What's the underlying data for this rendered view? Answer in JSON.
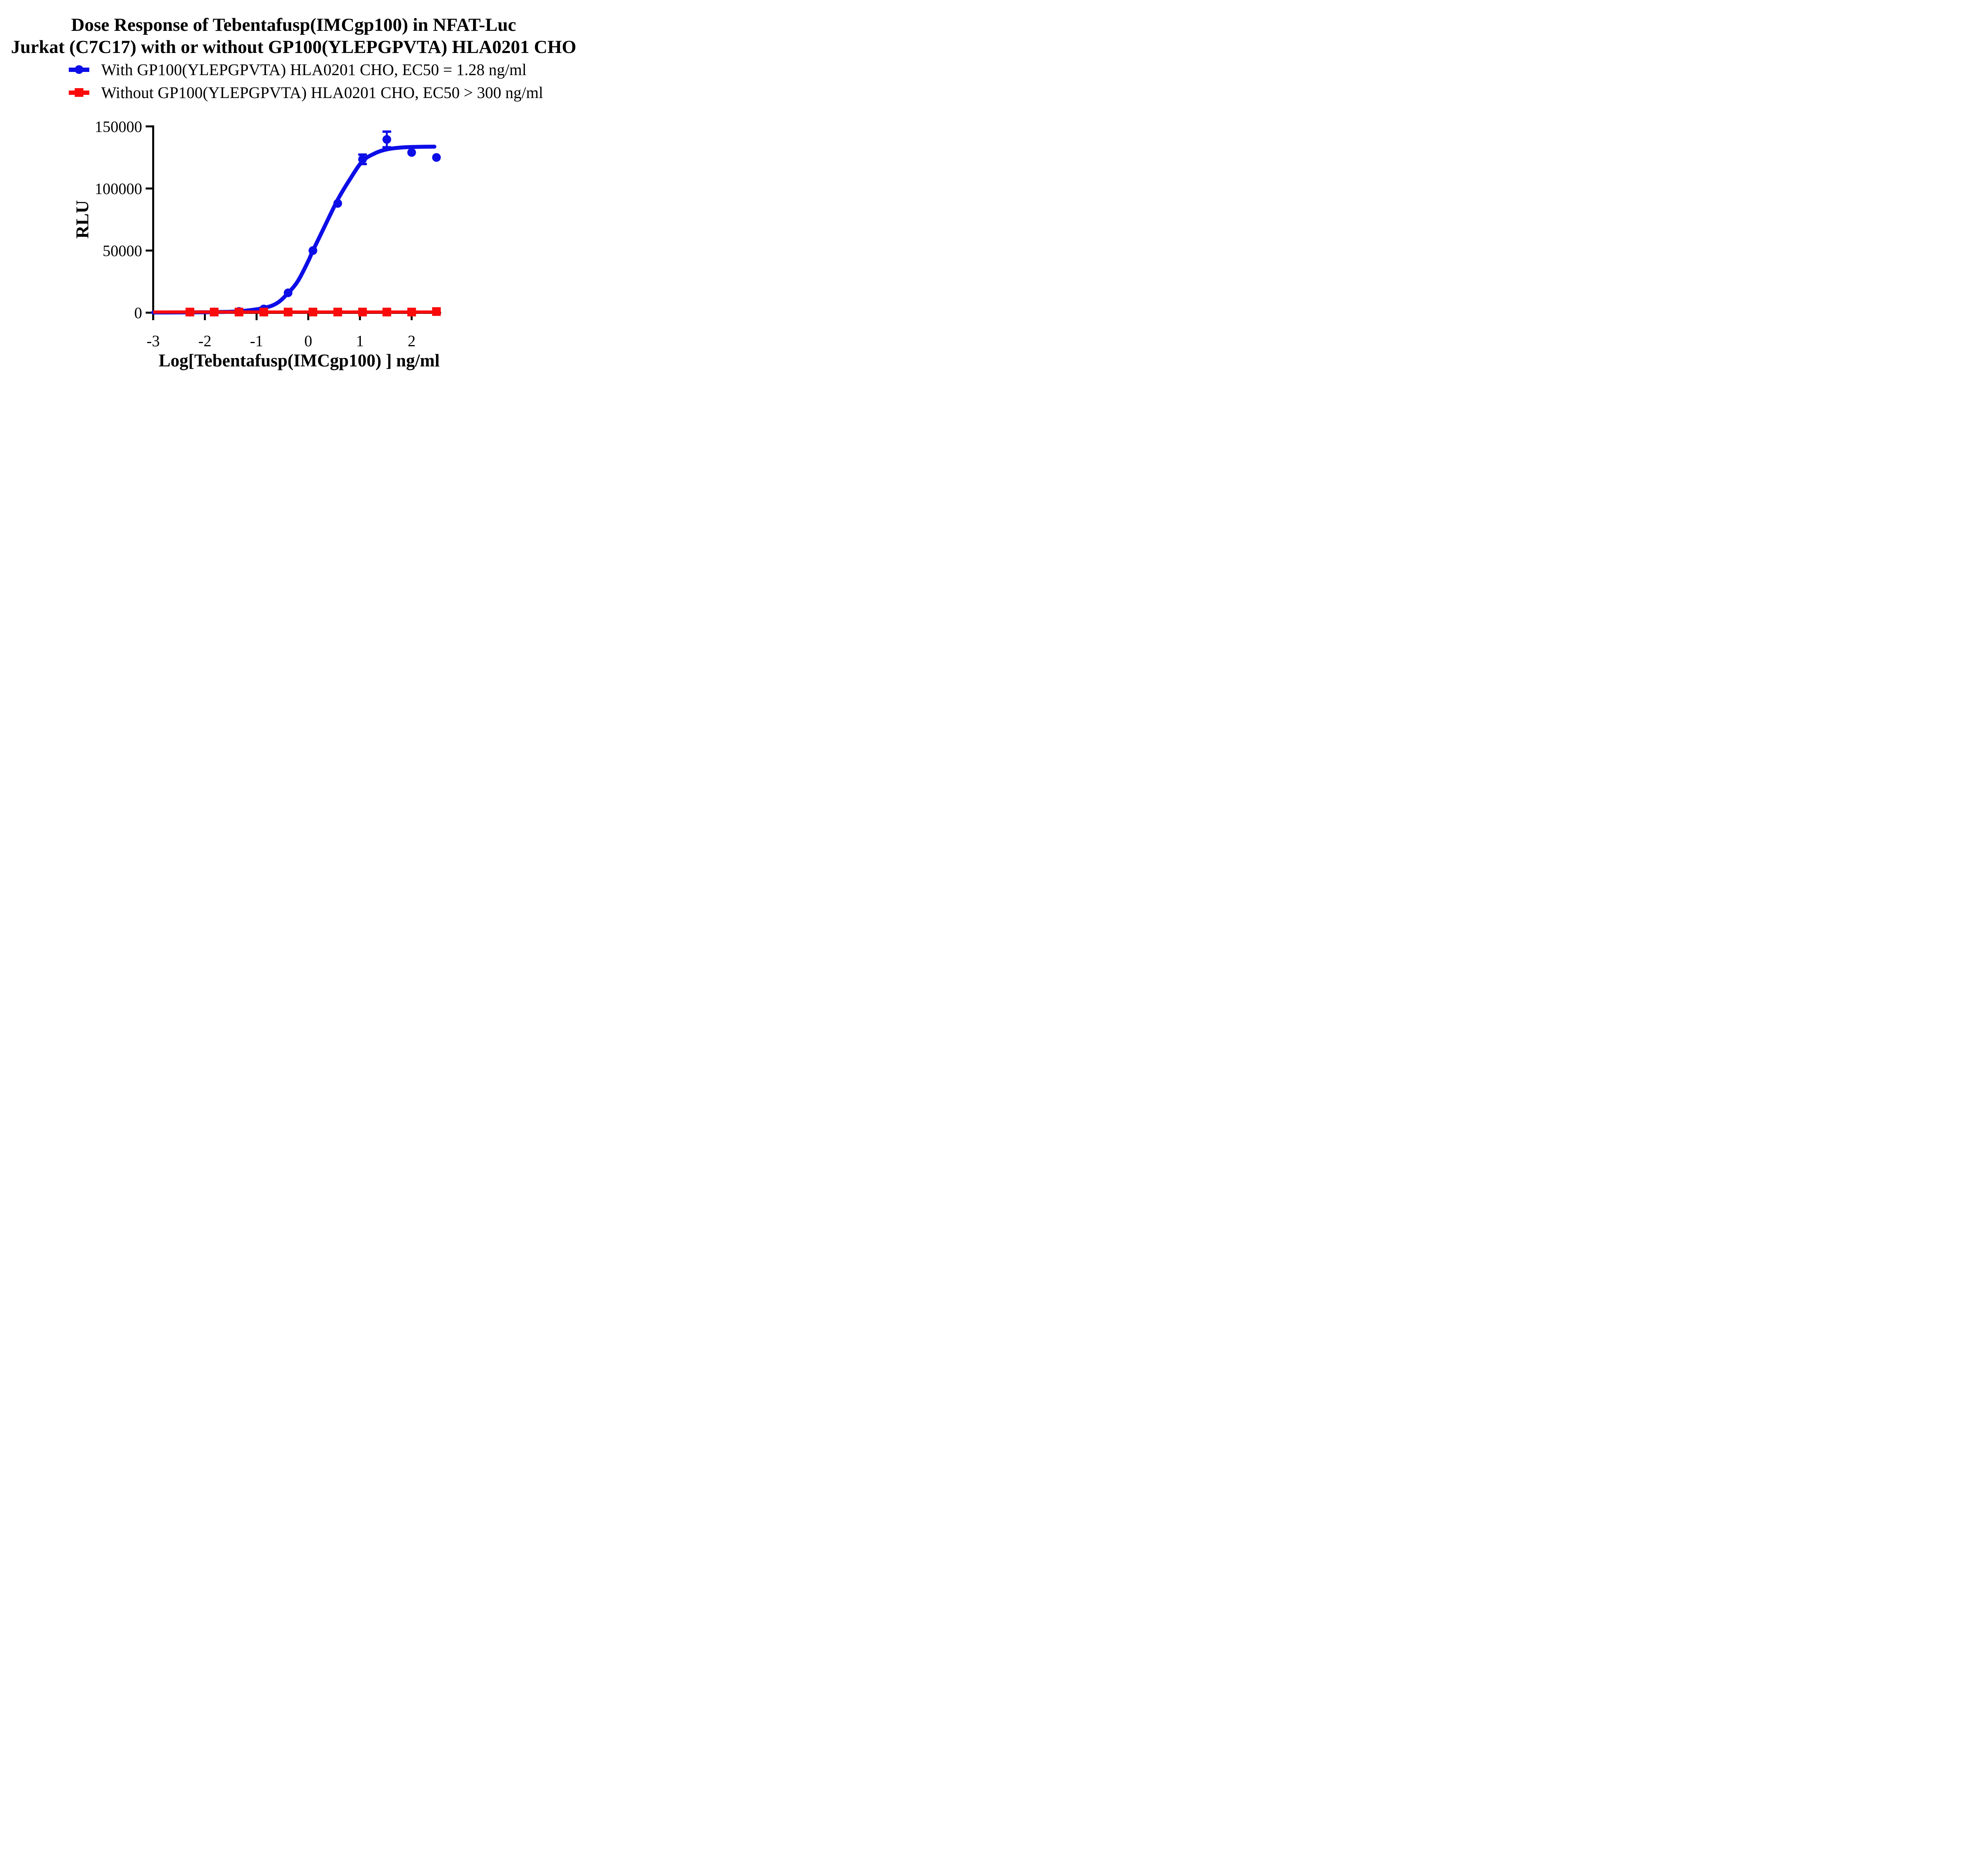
{
  "title": {
    "line1": "Dose Response of Tebentafusp(IMCgp100) in NFAT-Luc",
    "line2": "Jurkat (C7C17) with or without GP100(YLEPGPVTA) HLA0201 CHO"
  },
  "legend": {
    "items": [
      {
        "label": "With GP100(YLEPGPVTA) HLA0201 CHO, EC50 = 1.28 ng/ml",
        "color": "#0D0DE8",
        "marker": "circle"
      },
      {
        "label": "Without GP100(YLEPGPVTA) HLA0201 CHO, EC50 > 300 ng/ml",
        "color": "#FA0A0A",
        "marker": "square"
      }
    ]
  },
  "colors": {
    "blue": "#0D0DE8",
    "red": "#FA0A0A",
    "axis": "#000000"
  },
  "chart_data": {
    "type": "line",
    "title": "Dose Response of Tebentafusp(IMCgp100) in NFAT-Luc Jurkat (C7C17) with or without GP100(YLEPGPVTA) HLA0201 CHO",
    "xlabel": "Log[Tebentafusp(IMCgp100) ] ng/ml",
    "ylabel": "RLU",
    "xlim": [
      -3,
      2.57
    ],
    "ylim": [
      0,
      150000
    ],
    "x_ticks": [
      -3,
      -2,
      -1,
      0,
      1,
      2
    ],
    "y_ticks": [
      0,
      50000,
      100000,
      150000
    ],
    "grid": false,
    "legend_position": "top-left",
    "series": [
      {
        "name": "With GP100(YLEPGPVTA) HLA0201 CHO, EC50 = 1.28 ng/ml",
        "color": "#0D0DE8",
        "marker": "circle",
        "ec50_ng_ml": 1.28,
        "x": [
          -2.29,
          -1.82,
          -1.34,
          -0.86,
          -0.39,
          0.09,
          0.57,
          1.05,
          1.52,
          2.0,
          2.48
        ],
        "y": [
          400,
          600,
          1000,
          3000,
          16000,
          50000,
          88000,
          123500,
          139500,
          129000,
          125000
        ],
        "yerr": [
          null,
          null,
          null,
          null,
          null,
          null,
          null,
          3800,
          6300,
          null,
          null
        ],
        "fit_curve": {
          "x": [
            -3,
            -2.6,
            -2.29,
            -1.82,
            -1.34,
            -0.86,
            -0.6,
            -0.39,
            -0.2,
            0.0,
            0.09,
            0.3,
            0.57,
            0.8,
            1.05,
            1.3,
            1.52,
            1.8,
            2.1,
            2.44
          ],
          "y": [
            150,
            180,
            250,
            450,
            1100,
            3800,
            7800,
            15800,
            25500,
            41500,
            50000,
            68000,
            91000,
            107000,
            122000,
            128500,
            131500,
            133000,
            133500,
            133700
          ]
        }
      },
      {
        "name": "Without GP100(YLEPGPVTA) HLA0201 CHO, EC50 > 300 ng/ml",
        "color": "#FA0A0A",
        "marker": "square",
        "ec50_ng_ml": ">300",
        "x": [
          -2.29,
          -1.82,
          -1.34,
          -0.86,
          -0.39,
          0.09,
          0.57,
          1.05,
          1.52,
          2.0,
          2.48
        ],
        "y": [
          500,
          500,
          500,
          500,
          500,
          500,
          500,
          500,
          500,
          500,
          900
        ],
        "fit_curve": {
          "x": [
            -3,
            2.52
          ],
          "y": [
            500,
            500
          ]
        }
      }
    ]
  }
}
